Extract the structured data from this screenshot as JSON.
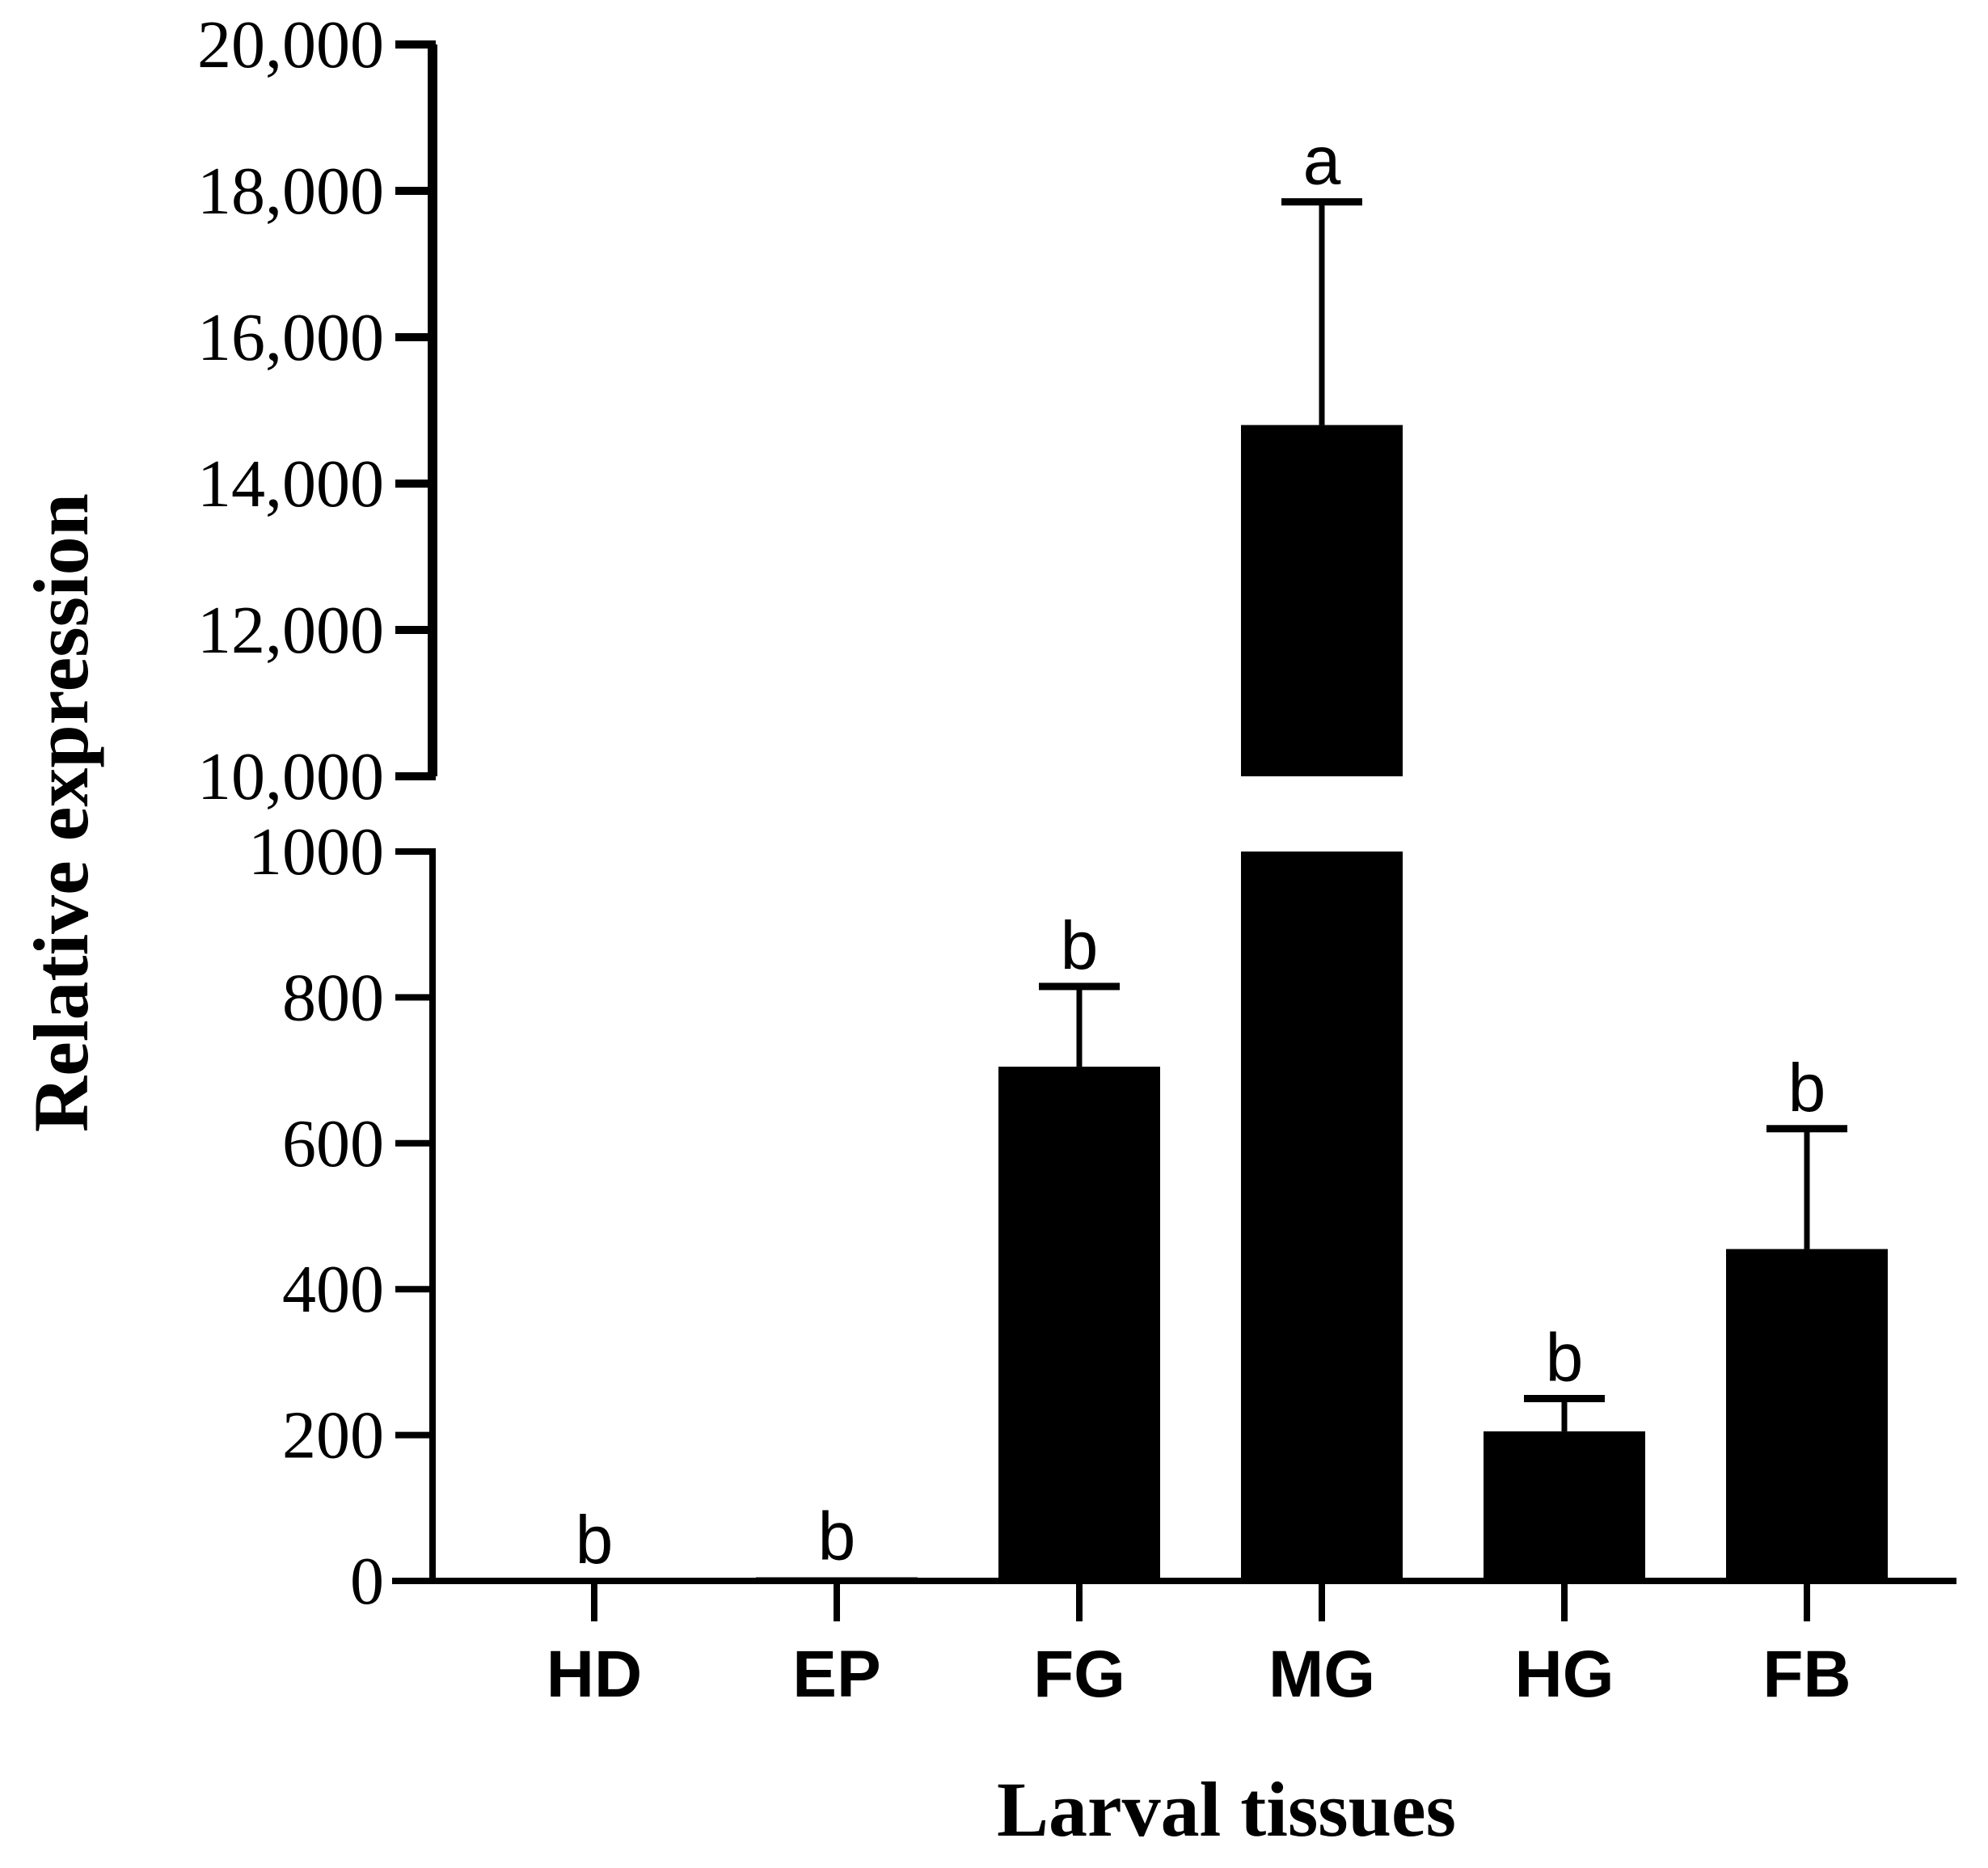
{
  "chart_data": {
    "type": "bar",
    "title": "",
    "xlabel": "Larval tissues",
    "ylabel": "Relative expression",
    "categories": [
      "HD",
      "EP",
      "FG",
      "MG",
      "HG",
      "FB"
    ],
    "values": [
      0,
      5,
      705,
      14800,
      205,
      455
    ],
    "errors": [
      0,
      0,
      110,
      3050,
      45,
      165
    ],
    "significance": [
      "b",
      "b",
      "b",
      "a",
      "b",
      "b"
    ],
    "y_axis_break": {
      "lower_range": [
        0,
        1000
      ],
      "upper_range": [
        10000,
        20000
      ],
      "lower_ticks": [
        "0",
        "200",
        "400",
        "600",
        "800",
        "1000"
      ],
      "upper_ticks": [
        "10,000",
        "12,000",
        "14,000",
        "16,000",
        "18,000",
        "20,000"
      ]
    },
    "grid": false,
    "legend": "none",
    "bar_color": "#000000"
  }
}
